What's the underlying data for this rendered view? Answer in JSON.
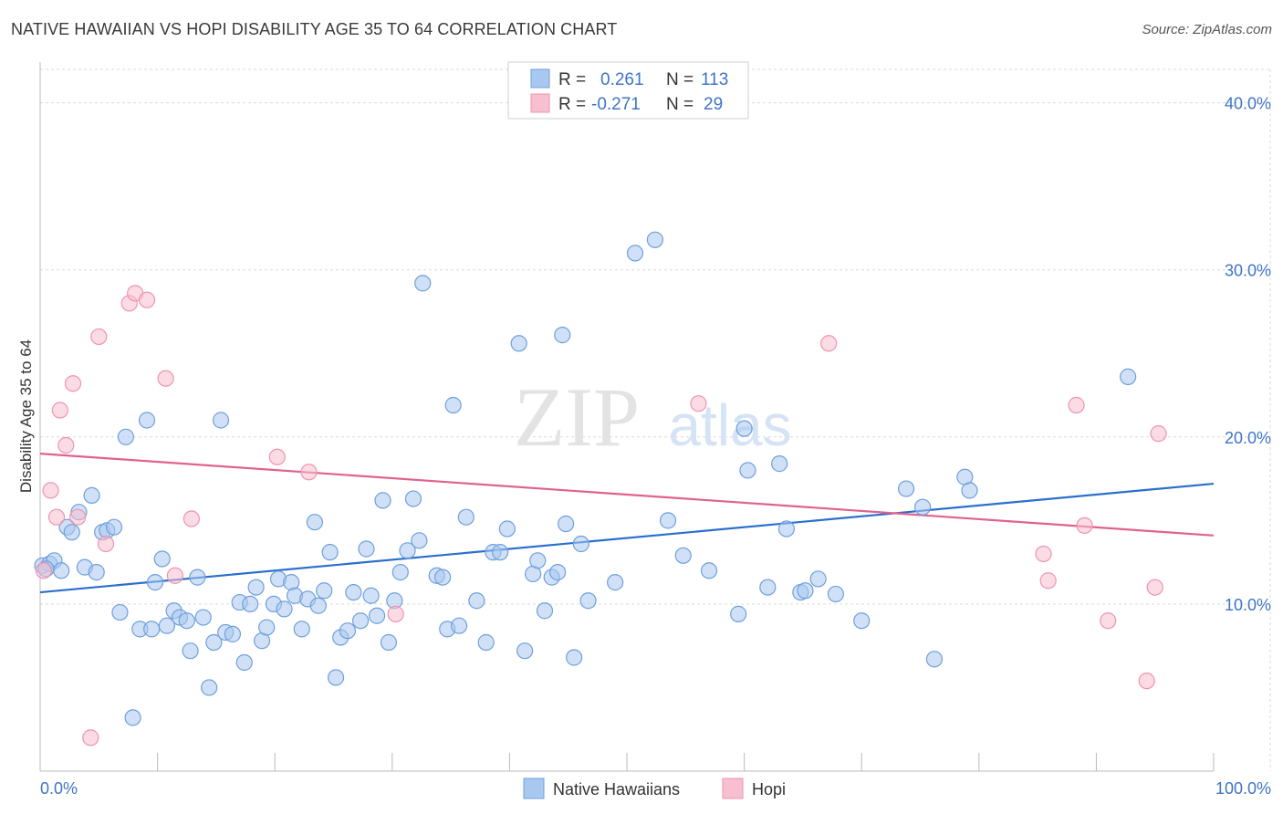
{
  "title": "NATIVE HAWAIIAN VS HOPI DISABILITY AGE 35 TO 64 CORRELATION CHART",
  "source": "Source: ZipAtlas.com",
  "watermark": {
    "zip": "ZIP",
    "atlas": "atlas"
  },
  "colors": {
    "blue_fill": "#a9c8f0",
    "blue_stroke": "#6f9fdc",
    "blue_line": "#2a6fce",
    "pink_fill": "#f7bfd0",
    "pink_stroke": "#ee93b0",
    "pink_line": "#e0628d",
    "grid": "#d9d9d9",
    "tick_text": "#3f74c8"
  },
  "legend": {
    "rows": [
      {
        "r_label": "R =",
        "r_value": "0.261",
        "n_label": "N =",
        "n_value": "113",
        "color": "blue"
      },
      {
        "r_label": "R =",
        "r_value": "-0.271",
        "n_label": "N =",
        "n_value": "29",
        "color": "pink"
      }
    ]
  },
  "chart_data": {
    "type": "scatter",
    "title": "NATIVE HAWAIIAN VS HOPI DISABILITY AGE 35 TO 64 CORRELATION CHART",
    "xlabel": "",
    "ylabel": "Disability Age 35 to 64",
    "xlim": [
      0,
      100
    ],
    "ylim": [
      0,
      42
    ],
    "x_tick_labels": [
      "0.0%",
      "100.0%"
    ],
    "y_ticks": [
      10,
      20,
      30,
      40
    ],
    "y_tick_labels": [
      "10.0%",
      "20.0%",
      "30.0%",
      "40.0%"
    ],
    "grid": true,
    "legend_position": "top-center",
    "series": [
      {
        "name": "Native Hawaiians",
        "color": "#a9c8f0",
        "trend": {
          "x": [
            0,
            100
          ],
          "y": [
            10.7,
            17.2
          ]
        },
        "points": [
          [
            0.2,
            12.3
          ],
          [
            0.8,
            12.4
          ],
          [
            1.2,
            12.6
          ],
          [
            1.8,
            12.0
          ],
          [
            2.3,
            14.6
          ],
          [
            2.7,
            14.3
          ],
          [
            3.3,
            15.5
          ],
          [
            3.8,
            12.2
          ],
          [
            4.4,
            16.5
          ],
          [
            4.8,
            11.9
          ],
          [
            5.3,
            14.3
          ],
          [
            5.7,
            14.4
          ],
          [
            6.3,
            14.6
          ],
          [
            6.8,
            9.5
          ],
          [
            7.3,
            20.0
          ],
          [
            7.9,
            3.2
          ],
          [
            8.5,
            8.5
          ],
          [
            9.1,
            21.0
          ],
          [
            9.5,
            8.5
          ],
          [
            9.8,
            11.3
          ],
          [
            10.4,
            12.7
          ],
          [
            10.8,
            8.7
          ],
          [
            11.4,
            9.6
          ],
          [
            11.9,
            9.2
          ],
          [
            12.5,
            9.0
          ],
          [
            12.8,
            7.2
          ],
          [
            13.4,
            11.6
          ],
          [
            13.9,
            9.2
          ],
          [
            14.4,
            5.0
          ],
          [
            14.8,
            7.7
          ],
          [
            15.4,
            21.0
          ],
          [
            15.8,
            8.3
          ],
          [
            16.4,
            8.2
          ],
          [
            17.0,
            10.1
          ],
          [
            17.4,
            6.5
          ],
          [
            17.9,
            10.0
          ],
          [
            18.4,
            11.0
          ],
          [
            18.9,
            7.8
          ],
          [
            19.3,
            8.6
          ],
          [
            19.9,
            10.0
          ],
          [
            20.3,
            11.5
          ],
          [
            20.8,
            9.7
          ],
          [
            21.4,
            11.3
          ],
          [
            21.7,
            10.5
          ],
          [
            22.3,
            8.5
          ],
          [
            22.8,
            10.3
          ],
          [
            23.4,
            14.9
          ],
          [
            23.7,
            9.9
          ],
          [
            24.2,
            10.8
          ],
          [
            24.7,
            13.1
          ],
          [
            25.2,
            5.6
          ],
          [
            25.6,
            8.0
          ],
          [
            26.2,
            8.4
          ],
          [
            26.7,
            10.7
          ],
          [
            27.3,
            9.0
          ],
          [
            27.8,
            13.3
          ],
          [
            28.2,
            10.5
          ],
          [
            28.7,
            9.3
          ],
          [
            29.2,
            16.2
          ],
          [
            29.7,
            7.7
          ],
          [
            30.2,
            10.2
          ],
          [
            30.7,
            11.9
          ],
          [
            31.3,
            13.2
          ],
          [
            31.8,
            16.3
          ],
          [
            32.3,
            13.8
          ],
          [
            32.6,
            29.2
          ],
          [
            33.8,
            11.7
          ],
          [
            34.3,
            11.6
          ],
          [
            34.7,
            8.5
          ],
          [
            35.2,
            21.9
          ],
          [
            35.7,
            8.7
          ],
          [
            36.3,
            15.2
          ],
          [
            37.2,
            10.2
          ],
          [
            38.0,
            7.7
          ],
          [
            38.6,
            13.1
          ],
          [
            39.2,
            13.1
          ],
          [
            39.8,
            14.5
          ],
          [
            40.8,
            25.6
          ],
          [
            41.3,
            7.2
          ],
          [
            42.0,
            11.8
          ],
          [
            42.4,
            12.6
          ],
          [
            43.0,
            9.6
          ],
          [
            43.6,
            11.6
          ],
          [
            44.1,
            11.9
          ],
          [
            44.5,
            26.1
          ],
          [
            44.8,
            14.8
          ],
          [
            45.5,
            6.8
          ],
          [
            46.1,
            13.6
          ],
          [
            46.7,
            10.2
          ],
          [
            49.0,
            11.3
          ],
          [
            50.7,
            31.0
          ],
          [
            52.4,
            31.8
          ],
          [
            53.5,
            15.0
          ],
          [
            54.8,
            12.9
          ],
          [
            57.0,
            12.0
          ],
          [
            59.5,
            9.4
          ],
          [
            60.0,
            20.5
          ],
          [
            60.3,
            18.0
          ],
          [
            62.0,
            11.0
          ],
          [
            63.0,
            18.4
          ],
          [
            63.6,
            14.5
          ],
          [
            64.8,
            10.7
          ],
          [
            65.2,
            10.8
          ],
          [
            66.3,
            11.5
          ],
          [
            67.8,
            10.6
          ],
          [
            70.0,
            9.0
          ],
          [
            73.8,
            16.9
          ],
          [
            75.2,
            15.8
          ],
          [
            76.2,
            6.7
          ],
          [
            78.8,
            17.6
          ],
          [
            79.2,
            16.8
          ],
          [
            92.7,
            23.6
          ],
          [
            0.5,
            12.1
          ]
        ]
      },
      {
        "name": "Hopi",
        "color": "#f7bfd0",
        "trend": {
          "x": [
            0,
            100
          ],
          "y": [
            19.0,
            14.1
          ]
        },
        "points": [
          [
            0.3,
            12.0
          ],
          [
            0.9,
            16.8
          ],
          [
            1.4,
            15.2
          ],
          [
            1.7,
            21.6
          ],
          [
            2.2,
            19.5
          ],
          [
            2.8,
            23.2
          ],
          [
            3.2,
            15.2
          ],
          [
            4.3,
            2.0
          ],
          [
            5.0,
            26.0
          ],
          [
            5.6,
            13.6
          ],
          [
            7.6,
            28.0
          ],
          [
            8.1,
            28.6
          ],
          [
            9.1,
            28.2
          ],
          [
            10.7,
            23.5
          ],
          [
            11.5,
            11.7
          ],
          [
            12.9,
            15.1
          ],
          [
            20.2,
            18.8
          ],
          [
            22.9,
            17.9
          ],
          [
            30.3,
            9.4
          ],
          [
            56.1,
            22.0
          ],
          [
            67.2,
            25.6
          ],
          [
            85.5,
            13.0
          ],
          [
            85.9,
            11.4
          ],
          [
            88.3,
            21.9
          ],
          [
            89.0,
            14.7
          ],
          [
            91.0,
            9.0
          ],
          [
            94.3,
            5.4
          ],
          [
            95.0,
            11.0
          ],
          [
            95.3,
            20.2
          ]
        ]
      }
    ]
  }
}
